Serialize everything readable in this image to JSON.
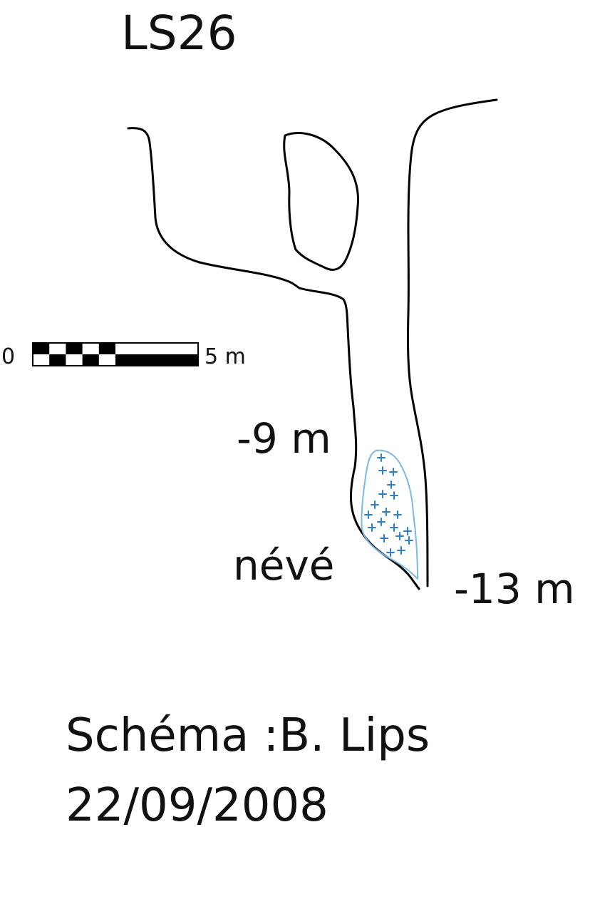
{
  "title": "LS26",
  "scale_bar": {
    "start_label": "0",
    "end_label": "5 m",
    "segments": 10
  },
  "labels": {
    "depth_upper": "-9 m",
    "depth_lower": "-13 m",
    "snow": "névé"
  },
  "credit": {
    "author": "Schéma :B. Lips",
    "date": "22/09/2008"
  },
  "colors": {
    "outline": "#000000",
    "snow_outline": "#7ab8e8",
    "snow_marks": "#2a7fd4"
  }
}
